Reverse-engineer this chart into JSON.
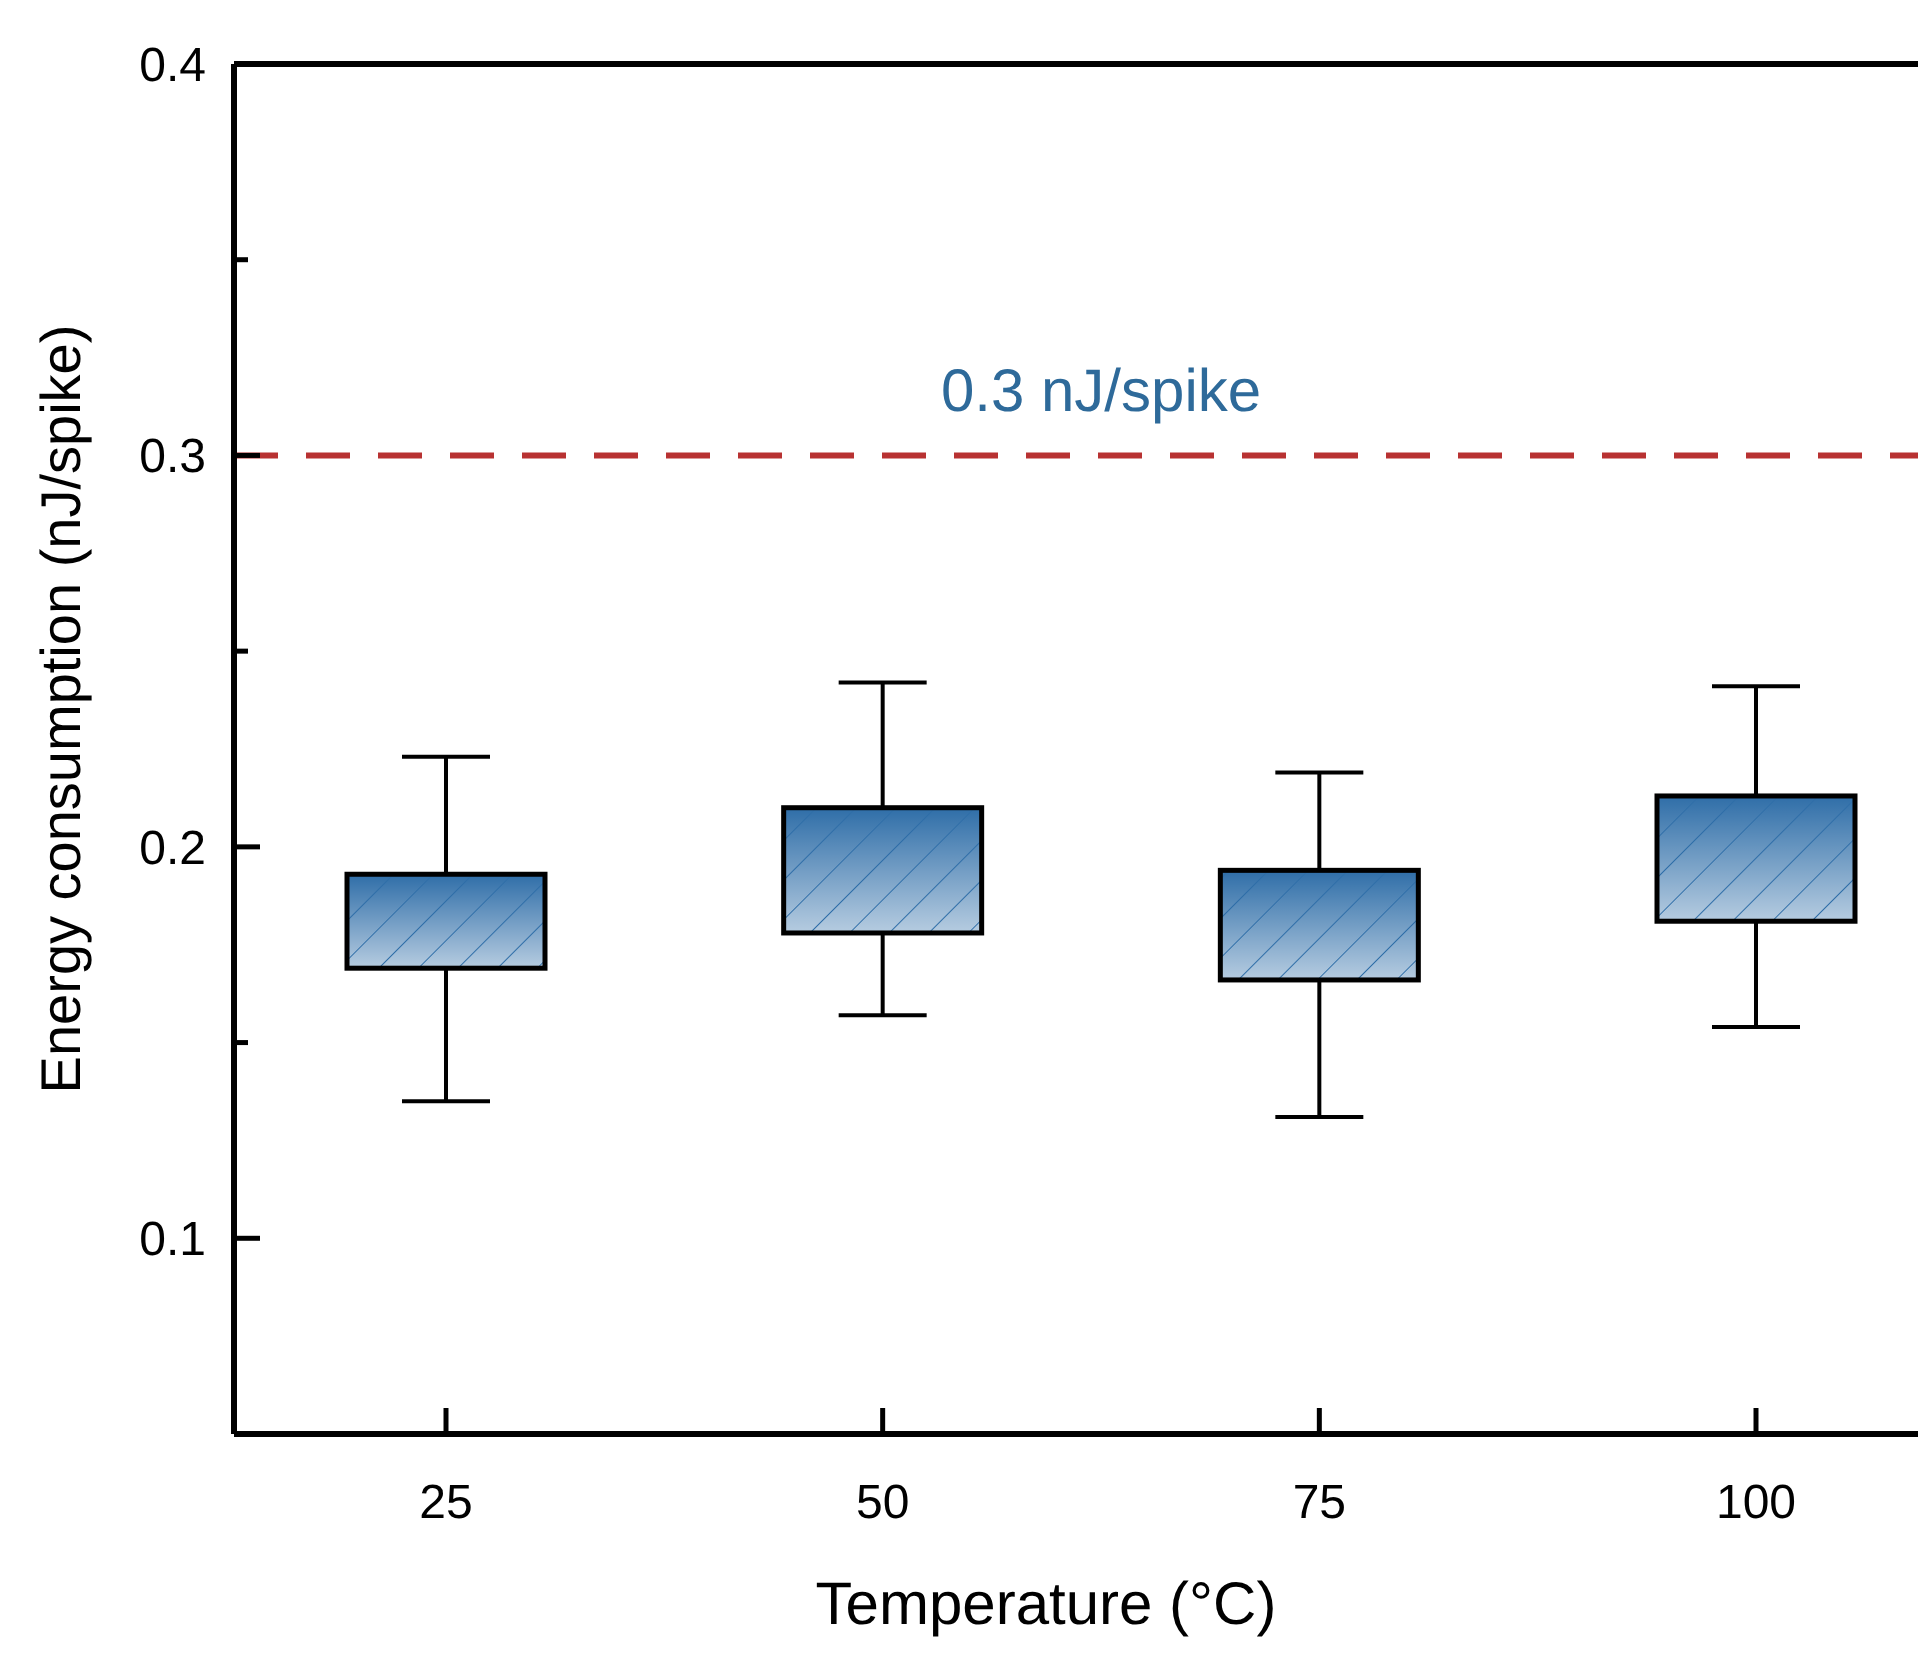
{
  "chart_data": {
    "type": "box",
    "xlabel": "Temperature (°C)",
    "ylabel": "Energy consumption (nJ/spike)",
    "categories": [
      "25",
      "50",
      "75",
      "100"
    ],
    "series": [
      {
        "color": "#2f6ea8",
        "boxes": [
          {
            "low": 0.135,
            "q1": 0.169,
            "median": null,
            "q3": 0.193,
            "high": 0.223
          },
          {
            "low": 0.157,
            "q1": 0.178,
            "median": null,
            "q3": 0.21,
            "high": 0.242
          },
          {
            "low": 0.131,
            "q1": 0.166,
            "median": null,
            "q3": 0.194,
            "high": 0.219
          },
          {
            "low": 0.154,
            "q1": 0.181,
            "median": null,
            "q3": 0.213,
            "high": 0.241
          }
        ]
      }
    ],
    "ylim": [
      0.05,
      0.4
    ],
    "yticks": [
      {
        "value": 0.05,
        "label": null
      },
      0.1,
      {
        "value": 0.15,
        "label": null
      },
      0.2,
      {
        "value": 0.25,
        "label": null
      },
      0.3,
      {
        "value": 0.35,
        "label": null
      },
      0.4
    ],
    "ref_lines": [
      {
        "axis": "y",
        "value": 0.3,
        "label": "0.3 nJ/spike",
        "color": "#b83232",
        "line_style": "dashed"
      }
    ],
    "grid": false
  }
}
